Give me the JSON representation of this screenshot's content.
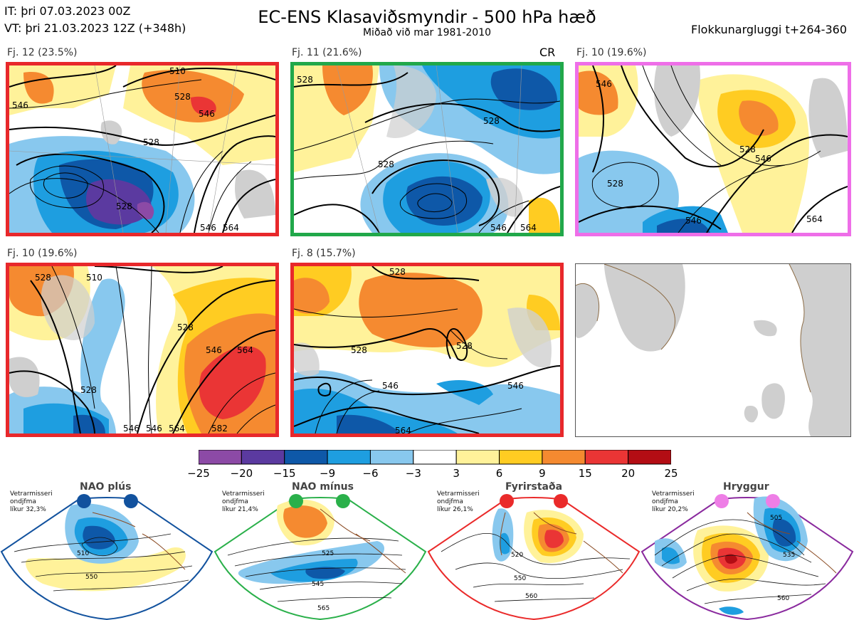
{
  "header": {
    "it_line": "IT: þri 07.03.2023 00Z",
    "vt_line": "VT: þri 21.03.2023 12Z  (+348h)",
    "title": "EC-ENS Klasaviðsmyndir - 500 hPa hæð",
    "subtitle": "Miðað við mar 1981-2010",
    "window": "Flokkunargluggi t+264-360"
  },
  "panels": [
    {
      "label": "Fj. 12 (23.5%)",
      "border": "#e8282b",
      "contours": [
        "510",
        "528",
        "546",
        "528",
        "528",
        "546",
        "546",
        "564"
      ]
    },
    {
      "label": "Fj. 11 (21.6%)",
      "border": "#21a84a",
      "tag": "CR",
      "contours": [
        "528",
        "528",
        "528",
        "546",
        "564"
      ]
    },
    {
      "label": "Fj. 10 (19.6%)",
      "border": "#ee6ee8",
      "contours": [
        "546",
        "528",
        "528",
        "546",
        "546",
        "564"
      ]
    },
    {
      "label": "Fj. 10 (19.6%)",
      "border": "#e8282b",
      "contours": [
        "510",
        "528",
        "528",
        "546",
        "564",
        "528",
        "546",
        "546",
        "564",
        "582"
      ]
    },
    {
      "label": "Fj. 8 (15.7%)",
      "border": "#e8282b",
      "contours": [
        "528",
        "528",
        "528",
        "546",
        "546",
        "564"
      ]
    }
  ],
  "colorbar": {
    "ticks": [
      "−25",
      "−20",
      "−15",
      "−9",
      "−6",
      "−3",
      "3",
      "6",
      "9",
      "15",
      "20",
      "25"
    ],
    "colors": [
      "#8c4aa6",
      "#5b3aa0",
      "#0e58a8",
      "#1e9ee0",
      "#88c8ee",
      "#ffffff",
      "#fff29a",
      "#ffcc22",
      "#f58a30",
      "#ea3535",
      "#b30d14"
    ]
  },
  "regimes": [
    {
      "name": "NAO plús",
      "stat": [
        "Vetrarmisseri",
        "ondjfma",
        "líkur 32,3%"
      ],
      "color": "#12529e",
      "contours": [
        "510",
        "550"
      ]
    },
    {
      "name": "NAO mínus",
      "stat": [
        "Vetrarmisseri",
        "ondjfma",
        "líkur 21,4%"
      ],
      "color": "#2ab04a",
      "contours": [
        "525",
        "545",
        "565"
      ]
    },
    {
      "name": "Fyrirstaða",
      "stat": [
        "Vetrarmisseri",
        "ondjfma",
        "líkur 26,1%"
      ],
      "color": "#ea2a2a",
      "contours": [
        "520",
        "550",
        "560"
      ]
    },
    {
      "name": "Hryggur",
      "stat": [
        "Vetrarmisseri",
        "ondjfma",
        "líkur 20,2%"
      ],
      "color": "#ee7ee6",
      "contours": [
        "505",
        "535",
        "560"
      ]
    }
  ]
}
